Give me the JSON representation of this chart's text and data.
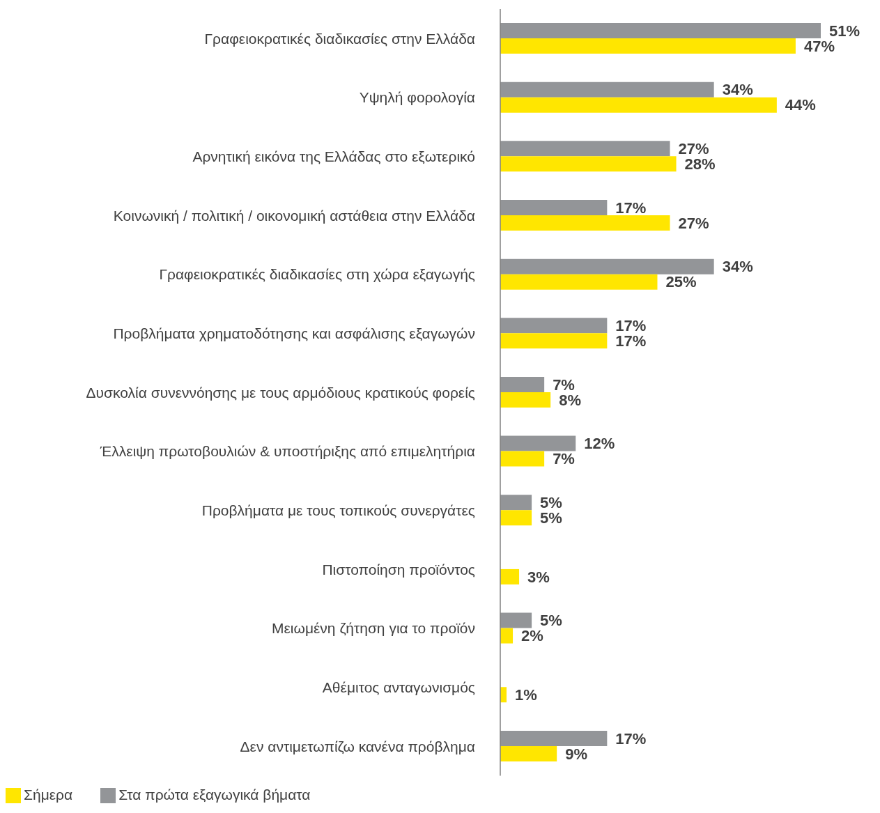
{
  "chart_data": {
    "type": "bar",
    "orientation": "horizontal",
    "legend": "bottom left",
    "categories": [
      "Γραφειοκρατικές διαδικασίες στην Ελλάδα",
      "Υψηλή φορολογία",
      "Αρνητική εικόνα της Ελλάδας στο εξωτερικό",
      "Κοινωνική / πολιτική / οικονομική αστάθεια στην Ελλάδα",
      "Γραφειοκρατικές διαδικασίες στη χώρα εξαγωγής",
      "Προβλήματα χρηματοδότησης και ασφάλισης εξαγωγών",
      "Δυσκολία συνεννόησης με τους αρμόδιους κρατικούς φορείς",
      "Έλλειψη πρωτοβουλιών & υποστήριξης από επιμελητήρια",
      "Προβλήματα με τους τοπικούς συνεργάτες",
      "Πιστοποίηση προϊόντος",
      "Μειωμένη ζήτηση για το προϊόν",
      "Αθέμιτος ανταγωνισμός",
      "Δεν αντιμετωπίζω κανένα πρόβλημα"
    ],
    "series": [
      {
        "name": "Στα πρώτα εξαγωγικά βήματα",
        "color": "#939598",
        "values": [
          51,
          34,
          27,
          17,
          34,
          17,
          7,
          12,
          5,
          null,
          5,
          null,
          17
        ],
        "value_labels": [
          "51%",
          "34%",
          "27%",
          "17%",
          "34%",
          "17%",
          "7%",
          "12%",
          "5%",
          null,
          "5%",
          null,
          "17%"
        ]
      },
      {
        "name": "Σήμερα",
        "color": "#ffe600",
        "values": [
          47,
          44,
          28,
          27,
          25,
          17,
          8,
          7,
          5,
          3,
          2,
          1,
          9
        ],
        "value_labels": [
          "47%",
          "44%",
          "28%",
          "27%",
          "25%",
          "17%",
          "8%",
          "7%",
          "5%",
          "3%",
          "2%",
          "1%",
          "9%"
        ]
      }
    ]
  }
}
